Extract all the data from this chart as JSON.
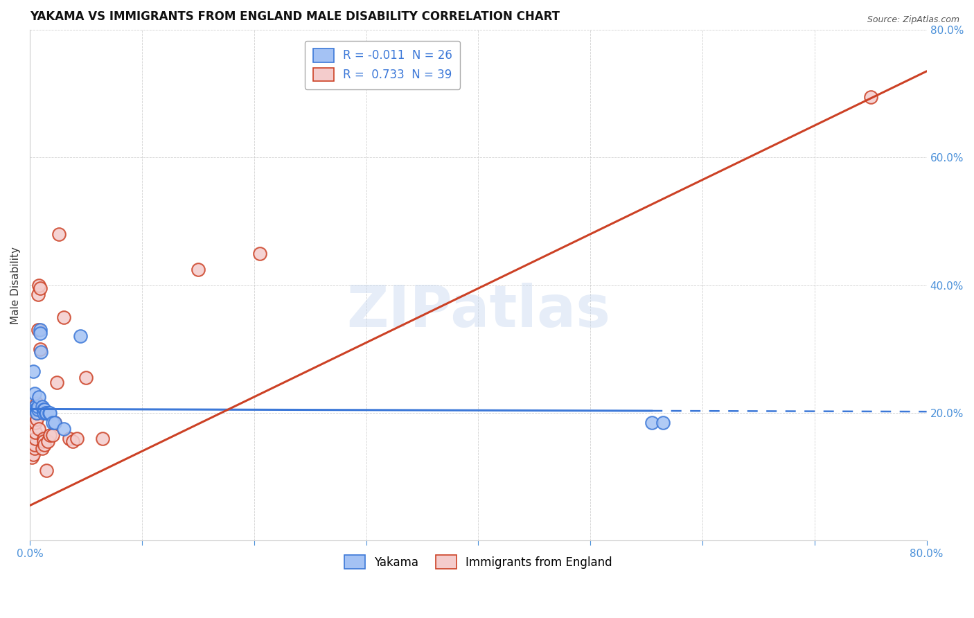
{
  "title": "YAKAMA VS IMMIGRANTS FROM ENGLAND MALE DISABILITY CORRELATION CHART",
  "source": "Source: ZipAtlas.com",
  "ylabel": "Male Disability",
  "xlim": [
    0.0,
    0.8
  ],
  "ylim": [
    0.0,
    0.8
  ],
  "legend_blue_r": "-0.011",
  "legend_blue_n": "26",
  "legend_pink_r": "0.733",
  "legend_pink_n": "39",
  "blue_color": "#a4c2f4",
  "pink_color": "#f4cccc",
  "blue_edge_color": "#3c78d8",
  "pink_edge_color": "#cc4125",
  "blue_line_color": "#3c78d8",
  "pink_line_color": "#cc4125",
  "blue_scatter": [
    [
      0.003,
      0.265
    ],
    [
      0.004,
      0.23
    ],
    [
      0.005,
      0.21
    ],
    [
      0.005,
      0.205
    ],
    [
      0.006,
      0.205
    ],
    [
      0.006,
      0.2
    ],
    [
      0.007,
      0.205
    ],
    [
      0.007,
      0.21
    ],
    [
      0.008,
      0.225
    ],
    [
      0.009,
      0.33
    ],
    [
      0.009,
      0.325
    ],
    [
      0.01,
      0.295
    ],
    [
      0.011,
      0.21
    ],
    [
      0.012,
      0.205
    ],
    [
      0.012,
      0.2
    ],
    [
      0.013,
      0.205
    ],
    [
      0.014,
      0.2
    ],
    [
      0.015,
      0.2
    ],
    [
      0.017,
      0.2
    ],
    [
      0.018,
      0.2
    ],
    [
      0.02,
      0.185
    ],
    [
      0.022,
      0.185
    ],
    [
      0.03,
      0.175
    ],
    [
      0.045,
      0.32
    ],
    [
      0.555,
      0.185
    ],
    [
      0.565,
      0.185
    ]
  ],
  "pink_scatter": [
    [
      0.002,
      0.13
    ],
    [
      0.003,
      0.135
    ],
    [
      0.004,
      0.145
    ],
    [
      0.004,
      0.15
    ],
    [
      0.005,
      0.16
    ],
    [
      0.005,
      0.17
    ],
    [
      0.005,
      0.185
    ],
    [
      0.006,
      0.19
    ],
    [
      0.006,
      0.2
    ],
    [
      0.006,
      0.205
    ],
    [
      0.006,
      0.215
    ],
    [
      0.007,
      0.33
    ],
    [
      0.007,
      0.385
    ],
    [
      0.008,
      0.175
    ],
    [
      0.008,
      0.4
    ],
    [
      0.009,
      0.395
    ],
    [
      0.009,
      0.3
    ],
    [
      0.01,
      0.21
    ],
    [
      0.01,
      0.205
    ],
    [
      0.011,
      0.145
    ],
    [
      0.012,
      0.16
    ],
    [
      0.012,
      0.155
    ],
    [
      0.013,
      0.15
    ],
    [
      0.015,
      0.11
    ],
    [
      0.016,
      0.155
    ],
    [
      0.018,
      0.165
    ],
    [
      0.02,
      0.165
    ],
    [
      0.022,
      0.185
    ],
    [
      0.024,
      0.248
    ],
    [
      0.026,
      0.48
    ],
    [
      0.03,
      0.35
    ],
    [
      0.035,
      0.16
    ],
    [
      0.038,
      0.155
    ],
    [
      0.042,
      0.16
    ],
    [
      0.05,
      0.255
    ],
    [
      0.065,
      0.16
    ],
    [
      0.15,
      0.425
    ],
    [
      0.205,
      0.45
    ],
    [
      0.75,
      0.695
    ]
  ],
  "blue_line": {
    "x0": 0.0,
    "x1": 0.8,
    "y0": 0.206,
    "y1": 0.202
  },
  "blue_line_solid_end": 0.555,
  "pink_line": {
    "x0": 0.0,
    "x1": 0.8,
    "y0": 0.055,
    "y1": 0.735
  },
  "watermark": "ZIPatlas",
  "background_color": "#ffffff",
  "grid_color": "#cccccc",
  "title_fontsize": 12,
  "axis_fontsize": 11,
  "tick_fontsize": 11,
  "tick_color": "#4a90d9",
  "legend_fontsize": 12,
  "legend_r_color": "#cc0000",
  "legend_n_color": "#3c78d8"
}
